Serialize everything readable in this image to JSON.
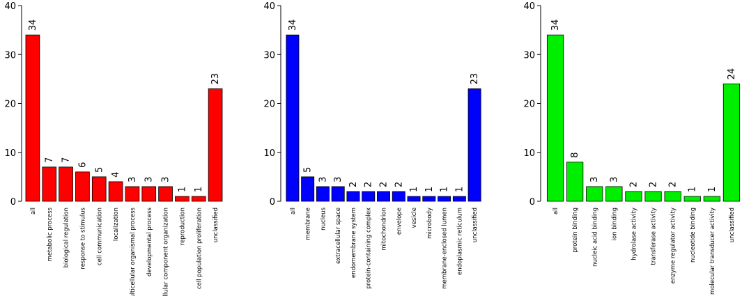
{
  "chart_data": [
    {
      "type": "bar",
      "color": "#ff0000",
      "ylim": [
        0,
        40
      ],
      "yticks": [
        0,
        10,
        20,
        30,
        40
      ],
      "categories": [
        "all",
        "metabolic process",
        "biological regulation",
        "response to stimulus",
        "cell communication",
        "localization",
        "multicellular organismal process",
        "developmental process",
        "cellular component organization",
        "reproduction",
        "cell population proliferation",
        "unclassified"
      ],
      "values": [
        34,
        7,
        7,
        6,
        5,
        4,
        3,
        3,
        3,
        1,
        1,
        23
      ]
    },
    {
      "type": "bar",
      "color": "#0000ff",
      "ylim": [
        0,
        40
      ],
      "yticks": [
        0,
        10,
        20,
        30,
        40
      ],
      "categories": [
        "all",
        "membrane",
        "nucleus",
        "extracellular space",
        "endomembrane system",
        "protein-containing complex",
        "mitochondrion",
        "envelope",
        "vesicle",
        "microbody",
        "membrane-enclosed lumen",
        "endoplasmic reticulum",
        "unclassified"
      ],
      "values": [
        34,
        5,
        3,
        3,
        2,
        2,
        2,
        2,
        1,
        1,
        1,
        1,
        23
      ]
    },
    {
      "type": "bar",
      "color": "#00ee00",
      "ylim": [
        0,
        40
      ],
      "yticks": [
        0,
        10,
        20,
        30,
        40
      ],
      "categories": [
        "all",
        "protein binding",
        "nucleic acid binding",
        "ion binding",
        "hydrolase activity",
        "transferase activity",
        "enzyme regulator activity",
        "nucleotide binding",
        "molecular transducer activity",
        "unclassified"
      ],
      "values": [
        34,
        8,
        3,
        3,
        2,
        2,
        2,
        1,
        1,
        24
      ]
    }
  ]
}
